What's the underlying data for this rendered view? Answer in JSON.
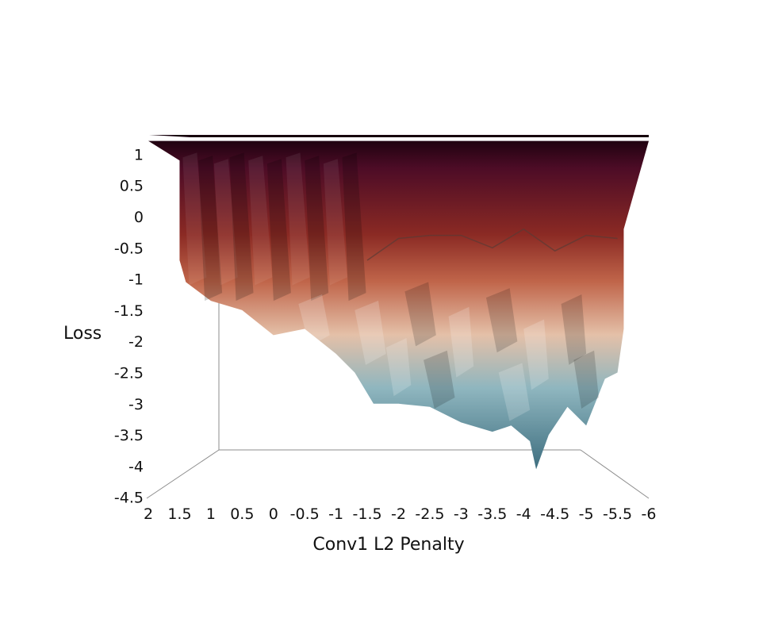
{
  "chart_data": {
    "type": "surface",
    "xlabel": "Conv1 L2 Penalty",
    "ylabel": "Loss",
    "x_ticks": [
      "2",
      "1.5",
      "1",
      "0.5",
      "0",
      "-0.5",
      "-1",
      "-1.5",
      "-2",
      "-2.5",
      "-3",
      "-3.5",
      "-4",
      "-4.5",
      "-5",
      "-5.5",
      "-6"
    ],
    "y_ticks": [
      "1",
      "0.5",
      "0",
      "-0.5",
      "-1",
      "-1.5",
      "-2",
      "-2.5",
      "-3",
      "-3.5",
      "-4",
      "-4.5"
    ],
    "xlim": [
      2,
      -6
    ],
    "ylim": [
      -4.5,
      1.2
    ],
    "colormap": [
      "#16000c",
      "#4d0c26",
      "#8b2a24",
      "#c0654a",
      "#e4c0a8",
      "#8fb6bf",
      "#3f6f80"
    ],
    "front_edge": {
      "x": [
        1.5,
        1.4,
        1.0,
        0.5,
        0.0,
        -0.5,
        -1.0,
        -1.3,
        -1.6,
        -2.0,
        -2.5,
        -3.0,
        -3.5,
        -3.8,
        -4.1,
        -4.2,
        -4.4,
        -4.7,
        -5.0,
        -5.3,
        -5.5,
        -5.6
      ],
      "loss": [
        -0.7,
        -1.05,
        -1.35,
        -1.5,
        -1.9,
        -1.8,
        -2.2,
        -2.5,
        -3.0,
        -3.0,
        -3.05,
        -3.3,
        -3.45,
        -3.35,
        -3.6,
        -4.05,
        -3.5,
        -3.05,
        -3.35,
        -2.6,
        -2.5,
        -1.8
      ]
    },
    "ridge": {
      "x": [
        -1.5,
        -2.0,
        -2.5,
        -3.0,
        -3.5,
        -4.0,
        -4.5,
        -5.0,
        -5.5
      ],
      "loss": [
        -0.7,
        -0.35,
        -0.3,
        -0.3,
        -0.5,
        -0.2,
        -0.55,
        -0.3,
        -0.35
      ]
    },
    "plateau_loss": 1.2
  }
}
